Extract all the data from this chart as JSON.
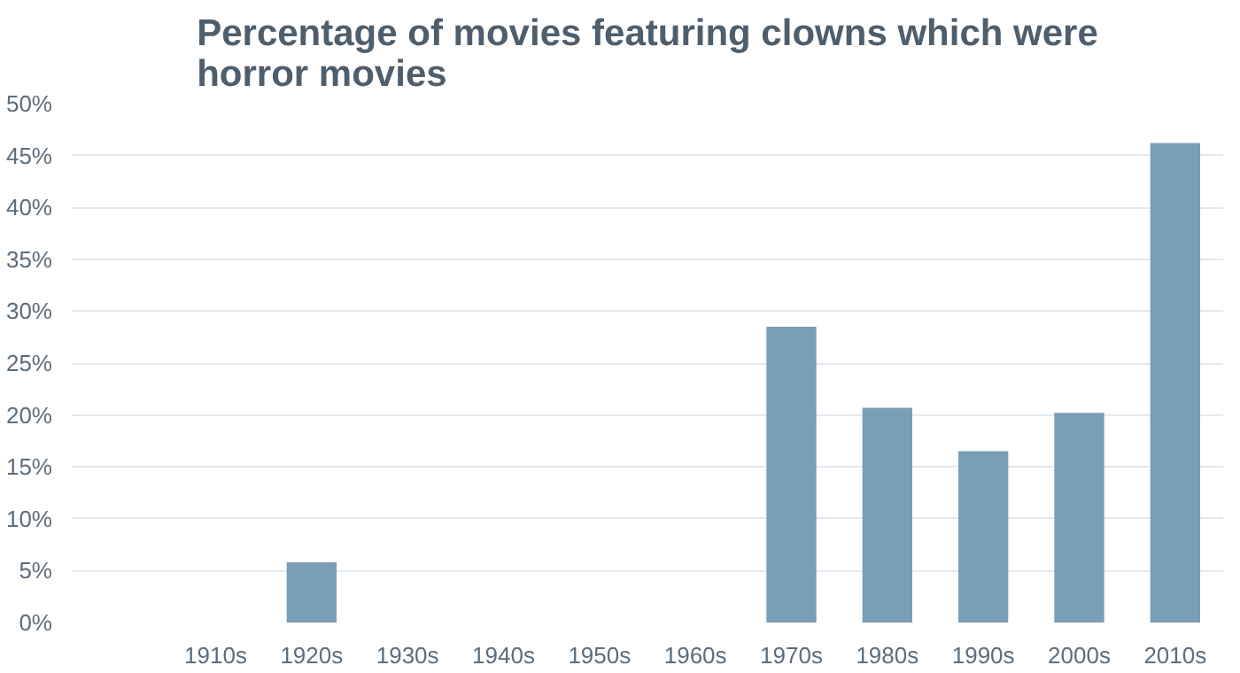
{
  "chart_data": {
    "type": "bar",
    "title": "Percentage of movies featuring clowns which were\nhorror movies",
    "categories": [
      null,
      "1910s",
      "1920s",
      "1930s",
      "1940s",
      "1950s",
      "1960s",
      "1970s",
      "1980s",
      "1990s",
      "2000s",
      "2010s"
    ],
    "values": [
      null,
      0,
      5.8,
      0,
      0,
      0,
      0,
      28.5,
      20.7,
      16.5,
      20.2,
      46.2
    ],
    "color": "#7a9db8",
    "ylim": [
      0,
      50
    ],
    "yticks": [
      {
        "value": 0,
        "label": "0%"
      },
      {
        "value": 5,
        "label": "5%"
      },
      {
        "value": 10,
        "label": "10%"
      },
      {
        "value": 15,
        "label": "15%"
      },
      {
        "value": 20,
        "label": "20%"
      },
      {
        "value": 25,
        "label": "25%"
      },
      {
        "value": 30,
        "label": "30%"
      },
      {
        "value": 35,
        "label": "35%"
      },
      {
        "value": 40,
        "label": "40%"
      },
      {
        "value": 45,
        "label": "45%"
      },
      {
        "value": 50,
        "label": "50%"
      }
    ],
    "grid": "y"
  }
}
